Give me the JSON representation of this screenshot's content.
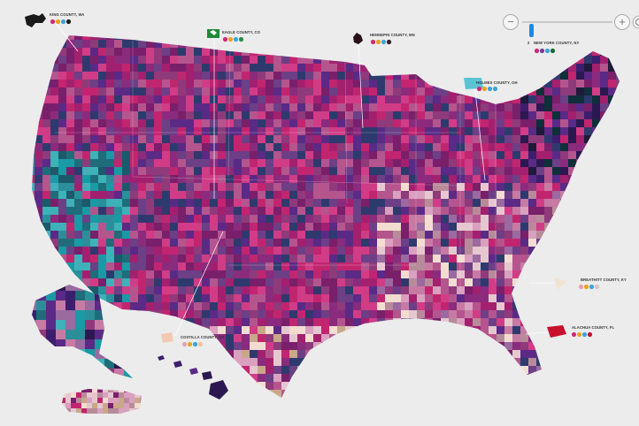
{
  "zoom": {
    "minus_label": "−",
    "plus_label": "+",
    "level": 0.1,
    "reset_icon": "refresh-icon"
  },
  "palette": [
    "#7a1f6a",
    "#a3206f",
    "#c2256f",
    "#d13c86",
    "#8a2b7d",
    "#5a2a86",
    "#3c1e6e",
    "#2b1850",
    "#8f3a7a",
    "#b5558e",
    "#c77aa4",
    "#d9a0bf",
    "#9a6aa0",
    "#6c3f86",
    "#1f6d7a",
    "#2a8f99",
    "#1a9aa5",
    "#3fb1b8",
    "#1a5a6a",
    "#0f2f3a",
    "#2e3a6e",
    "#1f1a3a",
    "#b88b9a",
    "#e6c7cf",
    "#f2ddd0",
    "#c9a88a",
    "#8a6f88",
    "#4a2a5a"
  ],
  "callouts": [
    {
      "id": "king",
      "label": "KING COUNTY, WA",
      "number": "",
      "dots": [
        "#d1287a",
        "#e7a321",
        "#3aa6d6",
        "#1d1d1d"
      ]
    },
    {
      "id": "eagle",
      "label": "EAGLE COUNTY, CO",
      "number": "",
      "dots": [
        "#d1287a",
        "#e7a321",
        "#3aa6d6",
        "#2a8a4a"
      ]
    },
    {
      "id": "hennepin",
      "label": "HENNEPIN COUNTY, MN",
      "number": "",
      "dots": [
        "#d1287a",
        "#e7a321",
        "#3aa6d6",
        "#3a1c2a"
      ]
    },
    {
      "id": "newyork",
      "label": "NEW YORK COUNTY, NY",
      "number": "2",
      "dots": [
        "#d1287a",
        "#7a3a9a",
        "#3aa6d6",
        "#1a6a3a"
      ]
    },
    {
      "id": "holmes",
      "label": "HOLMES COUNTY, OH",
      "number": "",
      "dots": [
        "#d1287a",
        "#e7a321",
        "#3aa6d6",
        "#3aa6d6"
      ]
    },
    {
      "id": "breathitt",
      "label": "BREATHITT COUNTY, KY",
      "number": "",
      "dots": [
        "#e8a0b0",
        "#e7a321",
        "#3aa6d6",
        "#e0c0c0"
      ]
    },
    {
      "id": "costilla",
      "label": "COSTILLA COUNTY, CO",
      "number": "",
      "dots": [
        "#e8a0b0",
        "#e7a321",
        "#3aa6d6",
        "#f0c0a0"
      ]
    },
    {
      "id": "alachua",
      "label": "ALACHUA COUNTY, FL",
      "number": "",
      "dots": [
        "#d1287a",
        "#e7a321",
        "#3aa6d6",
        "#c8102e"
      ]
    }
  ]
}
